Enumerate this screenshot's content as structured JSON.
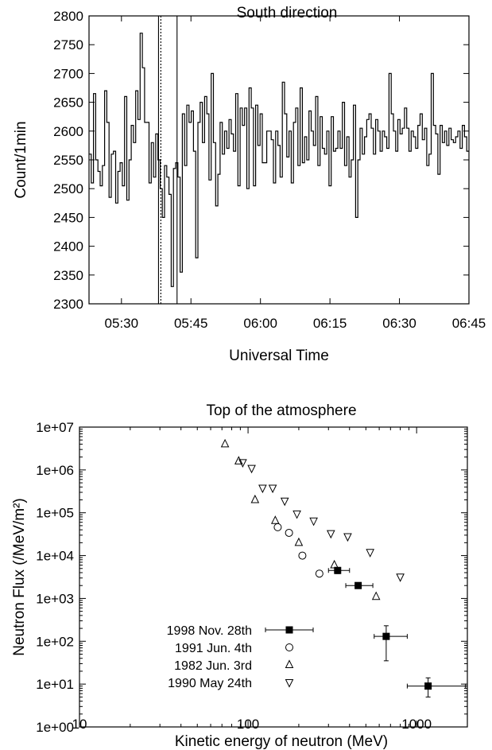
{
  "chart_data": [
    {
      "type": "line",
      "title": "South direction",
      "xlabel": "Universal Time",
      "ylabel": "Count/1min",
      "xlim": [
        "05:23",
        "06:45"
      ],
      "ylim": [
        2300,
        2800
      ],
      "x_ticks": [
        "05:30",
        "05:45",
        "06:00",
        "06:15",
        "06:30",
        "06:45"
      ],
      "y_ticks": [
        "2300",
        "2350",
        "2400",
        "2450",
        "2500",
        "2550",
        "2600",
        "2650",
        "2700",
        "2750",
        "2800"
      ],
      "step": "histogram",
      "series": [
        {
          "x_start": "05:23",
          "interval_min": 1,
          "values": [
            2560,
            2510,
            2665,
            2550,
            2530,
            2505,
            2540,
            2670,
            2615,
            2485,
            2560,
            2565,
            2475,
            2530,
            2545,
            2505,
            2660,
            2480,
            2550,
            2610,
            2580,
            2670,
            2620,
            2770,
            2710,
            2615,
            2615,
            2510,
            2580,
            2520,
            2595,
            2550,
            2500,
            2450,
            2540,
            2520,
            2490,
            2330,
            2535,
            2545,
            2520,
            2355,
            2630,
            2540,
            2645,
            2615,
            2635,
            2565,
            2380,
            2615,
            2650,
            2580,
            2660,
            2630,
            2515,
            2700,
            2580,
            2470,
            2525,
            2615,
            2560,
            2600,
            2570,
            2620,
            2595,
            2565,
            2665,
            2505,
            2640,
            2610,
            2640,
            2500,
            2675,
            2640,
            2505,
            2645,
            2575,
            2630,
            2545,
            2545,
            2600,
            2600,
            2585,
            2510,
            2600,
            2575,
            2520,
            2685,
            2630,
            2555,
            2600,
            2510,
            2615,
            2640,
            2540,
            2675,
            2545,
            2590,
            2550,
            2635,
            2600,
            2575,
            2660,
            2540,
            2625,
            2570,
            2560,
            2600,
            2505,
            2625,
            2565,
            2570,
            2600,
            2570,
            2650,
            2540,
            2590,
            2520,
            2550,
            2645,
            2450,
            2550,
            2605,
            2560,
            2590,
            2620,
            2630,
            2605,
            2560,
            2620,
            2600,
            2565,
            2600,
            2590,
            2570,
            2700,
            2630,
            2600,
            2565,
            2620,
            2595,
            2605,
            2640,
            2605,
            2565,
            2600,
            2590,
            2570,
            2610,
            2630,
            2585,
            2605,
            2540,
            2560,
            2700,
            2610,
            2595,
            2525,
            2610,
            2580,
            2600,
            2575,
            2605,
            2585,
            2580,
            2590,
            2600,
            2570,
            2610,
            2590,
            2565
          ]
        }
      ],
      "vertical_lines": [
        {
          "x": "05:38",
          "style": "solid"
        },
        {
          "x": "05:38.5",
          "style": "dashed"
        },
        {
          "x": "05:42",
          "style": "solid"
        }
      ]
    },
    {
      "type": "scatter",
      "title": "Top of the atmosphere",
      "xlabel": "Kinetic energy of neutron (MeV)",
      "ylabel": "Neutron Flux (/MeV/m²)",
      "x_scale": "log",
      "y_scale": "log",
      "xlim": [
        10,
        2000
      ],
      "ylim": [
        1,
        10000000
      ],
      "x_ticks": [
        "10",
        "100",
        "1000"
      ],
      "y_ticks": [
        "1e+00",
        "1e+01",
        "1e+02",
        "1e+03",
        "1e+04",
        "1e+05",
        "1e+06",
        "1e+07"
      ],
      "legend_position": "bottom-left",
      "series": [
        {
          "name": "1998 Nov. 28th",
          "marker": "filled-square",
          "points": [
            {
              "x": 340,
              "y": 4500,
              "xerr": [
                300,
                400
              ],
              "yerr": [
                3800,
                5200
              ]
            },
            {
              "x": 450,
              "y": 2000,
              "xerr": [
                380,
                550
              ],
              "yerr": [
                1700,
                2300
              ]
            },
            {
              "x": 660,
              "y": 130,
              "xerr": [
                560,
                880
              ],
              "yerr": [
                35,
                230
              ]
            },
            {
              "x": 1170,
              "y": 9,
              "xerr": [
                880,
                1950
              ],
              "yerr": [
                5,
                14
              ]
            }
          ]
        },
        {
          "name": "1991 Jun. 4th",
          "marker": "open-circle",
          "points": [
            {
              "x": 150,
              "y": 46000
            },
            {
              "x": 175,
              "y": 34000
            },
            {
              "x": 210,
              "y": 10000
            },
            {
              "x": 265,
              "y": 3800
            }
          ]
        },
        {
          "name": "1982 Jun. 3rd",
          "marker": "open-triangle-up",
          "points": [
            {
              "x": 73,
              "y": 4000000
            },
            {
              "x": 88,
              "y": 1600000
            },
            {
              "x": 110,
              "y": 200000
            },
            {
              "x": 145,
              "y": 65000
            },
            {
              "x": 200,
              "y": 20000
            },
            {
              "x": 325,
              "y": 6000
            },
            {
              "x": 575,
              "y": 1100
            }
          ]
        },
        {
          "name": "1990 May 24th",
          "marker": "open-triangle-down",
          "points": [
            {
              "x": 93,
              "y": 1500000
            },
            {
              "x": 105,
              "y": 1100000
            },
            {
              "x": 122,
              "y": 380000
            },
            {
              "x": 140,
              "y": 380000
            },
            {
              "x": 165,
              "y": 190000
            },
            {
              "x": 195,
              "y": 95000
            },
            {
              "x": 245,
              "y": 65000
            },
            {
              "x": 310,
              "y": 33000
            },
            {
              "x": 390,
              "y": 28000
            },
            {
              "x": 530,
              "y": 12000
            },
            {
              "x": 800,
              "y": 3200
            }
          ]
        }
      ]
    }
  ]
}
